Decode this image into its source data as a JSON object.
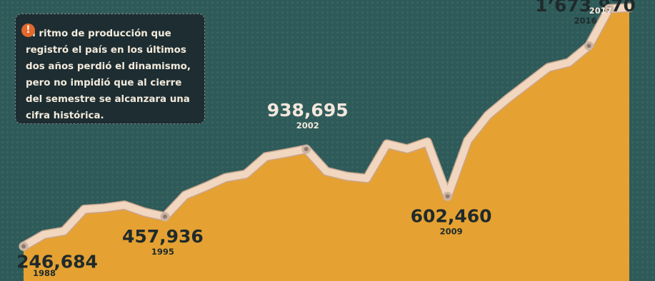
{
  "note": {
    "icon": "exclamation-icon",
    "icon_text": "!",
    "text": "El ritmo de producción que\nregistró el país en los últimos\ndos años perdió el dinamismo,\npero no impidió que al cierre\ndel semestre se alcanzara una\ncifra histórica."
  },
  "colors": {
    "background": "#2e5b59",
    "area": "#e5a132",
    "line": "#f2d7c0",
    "marker": "#d9c3b3",
    "note_box": "#1e2d31",
    "dark_label": "#1f2a2b",
    "light_label": "#f3e7dc",
    "alert": "#e2682c"
  },
  "chart_data": {
    "type": "area",
    "x": [
      1988,
      1989,
      1990,
      1991,
      1992,
      1993,
      1994,
      1995,
      1996,
      1997,
      1998,
      1999,
      2000,
      2001,
      2002,
      2003,
      2004,
      2005,
      2006,
      2007,
      2008,
      2009,
      2010,
      2011,
      2012,
      2013,
      2014,
      2015,
      2016,
      2017,
      2018
    ],
    "y": [
      246684,
      330000,
      355000,
      510000,
      520000,
      540000,
      490000,
      457936,
      610000,
      670000,
      735000,
      760000,
      885000,
      910000,
      938695,
      780000,
      745000,
      730000,
      975000,
      940000,
      990000,
      602460,
      1000000,
      1180000,
      1300000,
      1410000,
      1520000,
      1555000,
      1673970,
      1938000,
      1945000
    ],
    "ylim": [
      0,
      2000000
    ],
    "annotations": [
      {
        "year": 1988,
        "value": "246,684",
        "year_label": "1988",
        "style": "dark"
      },
      {
        "year": 1995,
        "value": "457,936",
        "year_label": "1995",
        "style": "dark"
      },
      {
        "year": 2002,
        "value": "938,695",
        "year_label": "2002",
        "style": "light"
      },
      {
        "year": 2009,
        "value": "602,460",
        "year_label": "2009",
        "style": "dark"
      },
      {
        "year": 2016,
        "value": "1’673,970",
        "year_label": "2016",
        "style": "dark"
      },
      {
        "year": 2017,
        "value": "",
        "year_label": "2017",
        "style": "light"
      }
    ],
    "grid": false
  }
}
